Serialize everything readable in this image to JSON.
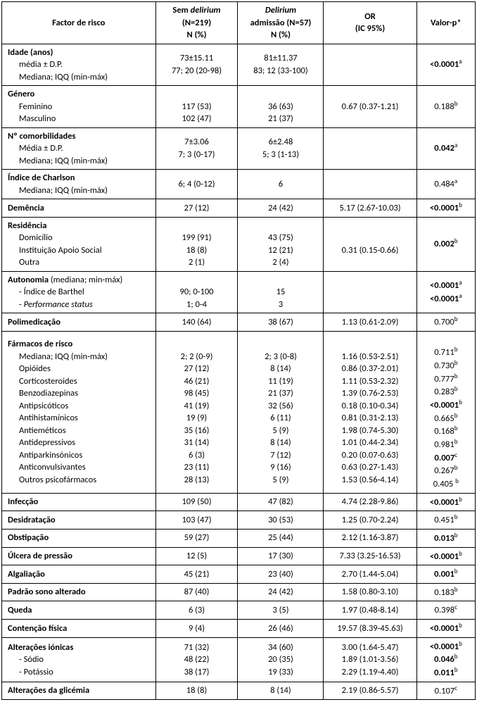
{
  "headers": {
    "factor": "Factor de risco",
    "sem_line1": "Sem",
    "sem_italic": "delirium",
    "sem_line2": "(N=219)",
    "sem_line3": "N (%)",
    "del_italic": "Delirium",
    "del_line2": "admissão (N=57)",
    "del_line3": "N (%)",
    "or_line1": "OR",
    "or_line2": "(IC 95%)",
    "p": "Valor-p*"
  },
  "rows": [
    {
      "type": "group",
      "lines": [
        {
          "t": "Idade (anos)",
          "b": true
        },
        {
          "t": "média ± D.P.",
          "pad": true
        },
        {
          "t": "Mediana; IQQ (min-máx)",
          "pad": true
        }
      ],
      "sem": [
        "73±15.11",
        "77; 20 (20-98)"
      ],
      "del": [
        "81±11.37",
        "83; 12 (33-100)"
      ],
      "or": [],
      "p": "<0.0001",
      "pb": true,
      "ps": "a"
    },
    {
      "type": "group",
      "lines": [
        {
          "t": "Género",
          "b": true
        },
        {
          "t": "Feminino",
          "pad": true
        },
        {
          "t": "Masculino",
          "pad": true
        }
      ],
      "sem": [
        "",
        "117 (53)",
        "102 (47)"
      ],
      "del": [
        "",
        "36 (63)",
        "21 (37)"
      ],
      "or": [
        "",
        "0.67 (0.37-1.21)",
        ""
      ],
      "p": "0.188",
      "pb": false,
      "ps": "b"
    },
    {
      "type": "group",
      "lines": [
        {
          "t": "Nº comorbilidades",
          "b": true
        },
        {
          "t": "Média ± D.P.",
          "pad": true
        },
        {
          "t": "Mediana; IQQ (min-máx)",
          "pad": true
        }
      ],
      "sem": [
        "7±3.06",
        "7; 3 (0-17)"
      ],
      "del": [
        "6±2.48",
        "5; 3 (1-13)"
      ],
      "or": [],
      "p": "0.042",
      "pb": true,
      "ps": "a"
    },
    {
      "type": "group",
      "lines": [
        {
          "t": "Índice de Charlson",
          "b": true
        },
        {
          "t": "Mediana; IQQ (min-máx)",
          "pad": true
        }
      ],
      "sem": [
        "6; 4 (0-12)"
      ],
      "del": [
        "6"
      ],
      "or": [],
      "p": "0.484",
      "pb": false,
      "ps": "a"
    },
    {
      "type": "single",
      "label": "Demência",
      "b": true,
      "sem": "27 (12)",
      "del": "24 (42)",
      "or": "5.17 (2.67-10.03)",
      "p": "<0.0001",
      "pb": true,
      "ps": "b"
    },
    {
      "type": "group",
      "lines": [
        {
          "t": "Residência",
          "b": true
        },
        {
          "t": "Domicílio",
          "pad": true
        },
        {
          "t": "Instituição Apoio Social",
          "pad": true
        },
        {
          "t": "Outra",
          "pad": true
        }
      ],
      "sem": [
        "",
        "199 (91)",
        "18 (8)",
        "2 (1)"
      ],
      "del": [
        "",
        "43 (75)",
        "12 (21)",
        "2 (4)"
      ],
      "or": [
        "",
        "",
        "0.31 (0.15-0.66)",
        ""
      ],
      "p": "0.002",
      "pb": true,
      "ps": "b"
    },
    {
      "type": "group",
      "lines": [
        {
          "t": "Autonomia",
          "b": true,
          "suffix": " (mediana; min-máx)"
        },
        {
          "t": "- Índice de Barthel",
          "pad": true
        },
        {
          "t": "- ",
          "pad": true,
          "italicSuffix": "Performance status"
        }
      ],
      "sem": [
        "",
        "90; 0-100",
        "1; 0-4"
      ],
      "del": [
        "",
        "15",
        "3"
      ],
      "or": [],
      "p": [
        "<0.0001",
        "<0.0001"
      ],
      "pb": true,
      "ps": [
        "a",
        "a"
      ],
      "pmulti": true
    },
    {
      "type": "single",
      "label": "Polimedicação",
      "b": true,
      "sem": "140 (64)",
      "del": "38 (67)",
      "or": "1.13 (0.61-2.09)",
      "p": "0.700",
      "pb": false,
      "ps": "b"
    },
    {
      "type": "group",
      "lines": [
        {
          "t": "Fármacos de risco",
          "b": true
        },
        {
          "t": "Mediana; IQQ (min-máx)",
          "pad": true
        },
        {
          "t": "Opióides",
          "pad": true
        },
        {
          "t": "Corticosteroides",
          "pad": true
        },
        {
          "t": "Benzodiazepinas",
          "pad": true
        },
        {
          "t": "Antipsicóticos",
          "pad": true
        },
        {
          "t": "Antihistamínicos",
          "pad": true
        },
        {
          "t": "Antieméticos",
          "pad": true
        },
        {
          "t": "Antidepressivos",
          "pad": true
        },
        {
          "t": "Antiparkinsónicos",
          "pad": true
        },
        {
          "t": "Anticonvulsivantes",
          "pad": true
        },
        {
          "t": "Outros psicofármacos",
          "pad": true
        }
      ],
      "sem": [
        "",
        "2; 2 (0-9)",
        "27 (12)",
        "46 (21)",
        "98 (45)",
        "41 (19)",
        "19 (9)",
        "35 (16)",
        "31 (14)",
        "6 (3)",
        "23 (11)",
        "28 (13)"
      ],
      "del": [
        "",
        "2; 3 (0-8)",
        "8 (14)",
        "11 (19)",
        "21 (37)",
        "32 (56)",
        "6 (11)",
        "5 (9)",
        "8 (14)",
        "7 (12)",
        "9 (16)",
        "5 (9)"
      ],
      "or": [
        "",
        "1.16 (0.53-2.51)",
        "0.86 (0.37-2.01)",
        "1.11 (0.53-2.32)",
        "1.39 (0.76-2.53)",
        "0.18 (0.10-0.34)",
        "0.81 (0.31-2.13)",
        "1.98 (0.74-5.30)",
        "1.01 (0.44-2.34)",
        "0.20 (0.07-0.63)",
        "0.63 (0.27-1.43)",
        "1.53 (0.56-4.14)"
      ],
      "p": [
        "",
        "0.711",
        "0.730",
        "0.777",
        "0.283",
        "<0.0001",
        "0.665",
        "0.168",
        "0.981",
        "0.007",
        "0.267",
        "0.405 "
      ],
      "ps": [
        "",
        "b",
        "b",
        "b",
        "b",
        "b",
        "b",
        "b",
        "b",
        "c",
        "b",
        "b"
      ],
      "pbArr": [
        false,
        false,
        false,
        false,
        false,
        true,
        false,
        false,
        false,
        true,
        false,
        false
      ],
      "pmulti": true
    },
    {
      "type": "single",
      "label": "Infecção",
      "b": true,
      "sem": "109 (50)",
      "del": "47 (82)",
      "or": "4.74 (2.28-9.86)",
      "p": "<0.0001",
      "pb": true,
      "ps": "b"
    },
    {
      "type": "single",
      "label": "Desidratação",
      "b": true,
      "sem": "103 (47)",
      "del": "30 (53)",
      "or": "1.25 (0.70-2.24)",
      "p": "0.451",
      "pb": false,
      "ps": "b"
    },
    {
      "type": "single",
      "label": "Obstipação",
      "b": true,
      "sem": "59 (27)",
      "del": "25 (44)",
      "or": "2.12 (1.16-3.87)",
      "p": "0.013",
      "pb": true,
      "ps": "b"
    },
    {
      "type": "single",
      "label": "Úlcera de pressão",
      "b": true,
      "sem": "12 (5)",
      "del": "17 (30)",
      "or": "7.33 (3.25-16.53)",
      "p": "<0.0001",
      "pb": true,
      "ps": "b"
    },
    {
      "type": "single",
      "label": "Algaliação",
      "b": true,
      "sem": "45 (21)",
      "del": "23 (40)",
      "or": "2.70 (1.44-5.04)",
      "p": "0.001",
      "pb": true,
      "ps": "b"
    },
    {
      "type": "single",
      "label": "Padrão sono alterado",
      "b": true,
      "sem": "87 (40)",
      "del": "24 (42)",
      "or": "1.58 (0.80-3.10)",
      "p": "0.183",
      "pb": false,
      "ps": "b"
    },
    {
      "type": "single",
      "label": "Queda",
      "b": true,
      "sem": "6 (3)",
      "del": "3 (5)",
      "or": "1.97 (0.48-8.14)",
      "p": "0.398",
      "pb": false,
      "ps": "c"
    },
    {
      "type": "single",
      "label": "Contenção física",
      "b": true,
      "sem": "9 (4)",
      "del": "26 (46)",
      "or": "19.57 (8.39-45.63)",
      "p": "<0.0001",
      "pb": true,
      "ps": "b"
    },
    {
      "type": "group",
      "lines": [
        {
          "t": "Alterações iónicas",
          "b": true
        },
        {
          "t": "- Sódio",
          "pad": true
        },
        {
          "t": "- Potássio",
          "pad": true
        }
      ],
      "sem": [
        "71 (32)",
        "48 (22)",
        "38 (17)"
      ],
      "del": [
        "34 (60)",
        "20 (35)",
        "19 (33)"
      ],
      "or": [
        "3.00 (1.64-5.47)",
        "1.89 (1.01-3.56)",
        "2.29 (1.19-4.40)"
      ],
      "p": [
        "<0.0001",
        "0.046",
        "0.011"
      ],
      "ps": [
        "b",
        "b",
        "b"
      ],
      "pbArr": [
        true,
        true,
        true
      ],
      "pmulti": true
    },
    {
      "type": "single",
      "label": "Alterações da glicémia",
      "b": true,
      "sem": "18 (8)",
      "del": "8 (14)",
      "or": "2.19 (0.86-5.57)",
      "p": "0.107",
      "pb": false,
      "ps": "c"
    }
  ]
}
